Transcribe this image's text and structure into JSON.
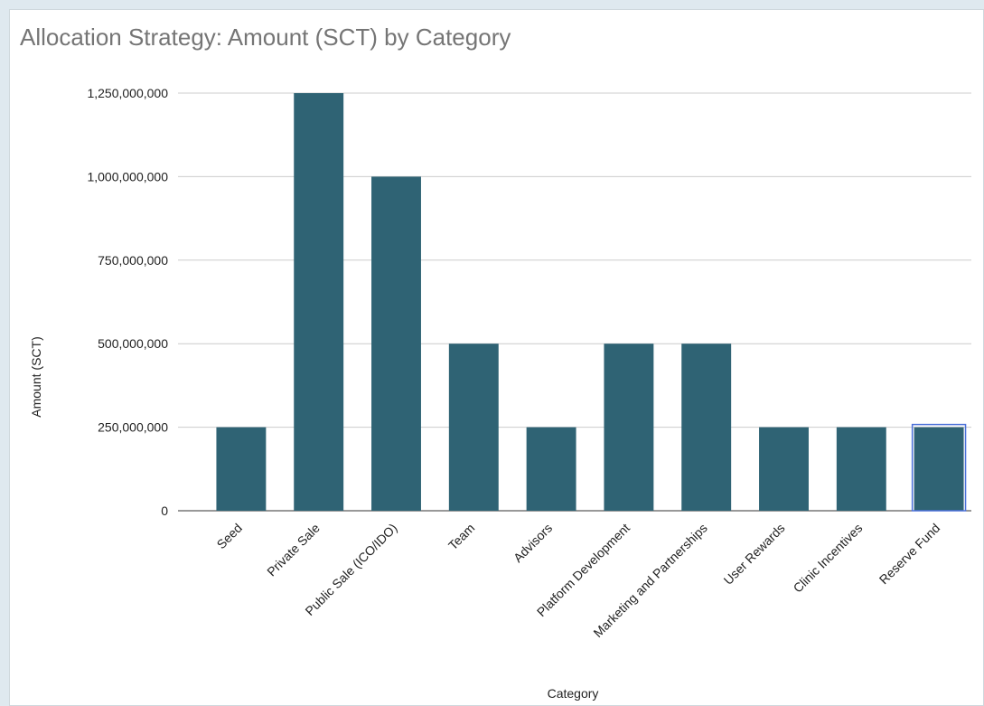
{
  "chart_data": {
    "type": "bar",
    "title": "Allocation Strategy: Amount (SCT) by Category",
    "xlabel": "Category",
    "ylabel": "Amount (SCT)",
    "categories": [
      "Seed",
      "Private Sale",
      "Public Sale (ICO/IDO)",
      "Team",
      "Advisors",
      "Platform Development",
      "Marketing and Partnerships",
      "User Rewards",
      "Clinic Incentives",
      "Reserve Fund"
    ],
    "values": [
      250000000,
      1250000000,
      1000000000,
      500000000,
      250000000,
      500000000,
      500000000,
      250000000,
      250000000,
      250000000
    ],
    "ylim": [
      0,
      1250000000
    ],
    "yticks": [
      0,
      250000000,
      500000000,
      750000000,
      1000000000,
      1250000000
    ],
    "ytick_labels": [
      "0",
      "250,000,000",
      "500,000,000",
      "750,000,000",
      "1,000,000,000",
      "1,250,000,000"
    ],
    "grid": true,
    "bar_color": "#2f6374",
    "highlight_color": "#4a6fd8",
    "highlighted_category": "Reserve Fund"
  }
}
